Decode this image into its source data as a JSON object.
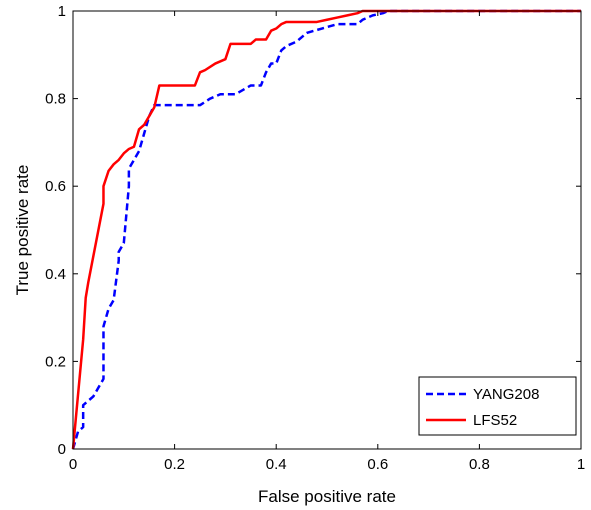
{
  "chart_data": {
    "type": "line",
    "xlabel": "False positive rate",
    "ylabel": "True positive rate",
    "xlim": [
      0,
      1
    ],
    "ylim": [
      0,
      1
    ],
    "xticks": [
      "0",
      "0.2",
      "0.4",
      "0.6",
      "0.8",
      "1"
    ],
    "yticks": [
      "0",
      "0.2",
      "0.4",
      "0.6",
      "0.8",
      "1"
    ],
    "grid": false,
    "legend_position": "bottom-right",
    "series": [
      {
        "name": "YANG208",
        "color": "#0000ff",
        "style": "dashed",
        "x": [
          0,
          0.01,
          0.02,
          0.02,
          0.03,
          0.04,
          0.05,
          0.06,
          0.06,
          0.07,
          0.08,
          0.09,
          0.09,
          0.1,
          0.11,
          0.11,
          0.12,
          0.13,
          0.14,
          0.15,
          0.16,
          0.17,
          0.2,
          0.25,
          0.27,
          0.29,
          0.32,
          0.35,
          0.37,
          0.38,
          0.39,
          0.4,
          0.41,
          0.42,
          0.44,
          0.46,
          0.49,
          0.52,
          0.56,
          0.57,
          0.59,
          0.61,
          0.62,
          0.65,
          0.7,
          0.8,
          0.9,
          1.0
        ],
        "y": [
          0,
          0.04,
          0.05,
          0.1,
          0.11,
          0.12,
          0.14,
          0.16,
          0.28,
          0.32,
          0.34,
          0.43,
          0.45,
          0.47,
          0.6,
          0.64,
          0.66,
          0.68,
          0.72,
          0.76,
          0.785,
          0.785,
          0.785,
          0.785,
          0.8,
          0.81,
          0.81,
          0.83,
          0.83,
          0.86,
          0.88,
          0.88,
          0.91,
          0.92,
          0.93,
          0.95,
          0.96,
          0.97,
          0.97,
          0.98,
          0.99,
          0.995,
          1.0,
          1.0,
          1.0,
          1.0,
          1.0,
          1.0
        ]
      },
      {
        "name": "LFS52",
        "color": "#ff0000",
        "style": "solid",
        "x": [
          0,
          0.02,
          0.025,
          0.03,
          0.04,
          0.05,
          0.06,
          0.06,
          0.07,
          0.08,
          0.09,
          0.1,
          0.11,
          0.12,
          0.13,
          0.14,
          0.15,
          0.16,
          0.17,
          0.24,
          0.25,
          0.26,
          0.28,
          0.3,
          0.31,
          0.35,
          0.36,
          0.38,
          0.39,
          0.4,
          0.41,
          0.42,
          0.48,
          0.5,
          0.52,
          0.54,
          0.56,
          0.57,
          0.65,
          0.8,
          1.0
        ],
        "y": [
          0,
          0.25,
          0.345,
          0.38,
          0.44,
          0.5,
          0.56,
          0.6,
          0.635,
          0.65,
          0.66,
          0.675,
          0.685,
          0.69,
          0.73,
          0.74,
          0.76,
          0.78,
          0.83,
          0.83,
          0.86,
          0.865,
          0.88,
          0.89,
          0.925,
          0.925,
          0.935,
          0.935,
          0.955,
          0.96,
          0.97,
          0.975,
          0.975,
          0.98,
          0.985,
          0.99,
          0.995,
          1.0,
          1.0,
          1.0,
          1.0
        ]
      }
    ]
  }
}
